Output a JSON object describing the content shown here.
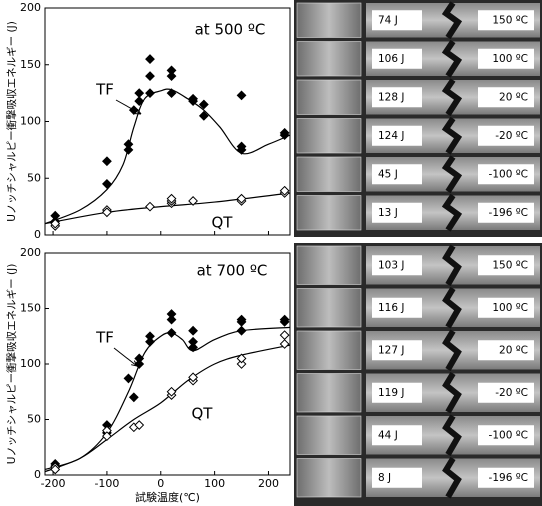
{
  "chart_data": [
    {
      "type": "scatter",
      "annotation": "at 500 ºC",
      "ylabel": "Uノッチシャルピー衝撃吸収エネルギー (J)",
      "xlim": [
        -215,
        240
      ],
      "ylim": [
        0,
        200
      ],
      "xticks": [
        -200,
        -100,
        0,
        100,
        200
      ],
      "yticks": [
        0,
        50,
        100,
        150,
        200
      ],
      "series": [
        {
          "name": "TF",
          "marker": "filled",
          "color": "#000000",
          "x": [
            -196,
            -196,
            -100,
            -100,
            -60,
            -60,
            -50,
            -40,
            -40,
            -20,
            -20,
            -20,
            20,
            20,
            20,
            60,
            60,
            80,
            80,
            150,
            150,
            150,
            230,
            230
          ],
          "values": [
            17,
            12,
            45,
            65,
            75,
            80,
            110,
            118,
            125,
            125,
            140,
            155,
            125,
            140,
            145,
            118,
            120,
            105,
            115,
            75,
            78,
            123,
            88,
            90
          ]
        },
        {
          "name": "QT",
          "marker": "open",
          "color": "#000000",
          "x": [
            -196,
            -196,
            -100,
            -100,
            -20,
            20,
            20,
            20,
            60,
            150,
            150,
            230,
            230
          ],
          "values": [
            8,
            10,
            22,
            20,
            25,
            28,
            30,
            32,
            30,
            30,
            32,
            37,
            39
          ]
        }
      ],
      "fits": [
        {
          "x": [
            -215,
            -150,
            -100,
            -70,
            -50,
            -30,
            0,
            20,
            50,
            80,
            110,
            150,
            200,
            240
          ],
          "values": [
            10,
            22,
            40,
            62,
            95,
            120,
            127,
            128,
            120,
            110,
            95,
            72,
            80,
            88
          ]
        },
        {
          "x": [
            -215,
            -100,
            0,
            100,
            240
          ],
          "values": [
            10,
            20,
            25,
            29,
            37
          ]
        }
      ]
    },
    {
      "type": "scatter",
      "annotation": "at 700 ºC",
      "ylabel": "Uノッチシャルピー衝撃吸収エネルギー (J)",
      "xlabel": "試験温度(℃)",
      "xlim": [
        -215,
        240
      ],
      "ylim": [
        0,
        200
      ],
      "xticks": [
        -200,
        -100,
        0,
        100,
        200
      ],
      "yticks": [
        0,
        50,
        100,
        150,
        200
      ],
      "series": [
        {
          "name": "TF",
          "marker": "filled",
          "color": "#000000",
          "x": [
            -196,
            -196,
            -100,
            -100,
            -50,
            -60,
            -40,
            -40,
            -20,
            -20,
            20,
            20,
            20,
            60,
            60,
            60,
            150,
            150,
            150,
            230,
            230
          ],
          "values": [
            8,
            10,
            45,
            38,
            70,
            87,
            100,
            105,
            120,
            125,
            140,
            145,
            128,
            115,
            120,
            130,
            138,
            140,
            130,
            138,
            140
          ]
        },
        {
          "name": "QT",
          "marker": "open",
          "color": "#000000",
          "x": [
            -196,
            -196,
            -100,
            -100,
            -50,
            -40,
            20,
            20,
            60,
            60,
            150,
            150,
            230,
            230
          ],
          "values": [
            7,
            5,
            40,
            35,
            43,
            45,
            72,
            75,
            85,
            88,
            100,
            105,
            118,
            126
          ]
        }
      ],
      "fits": [
        {
          "x": [
            -215,
            -150,
            -100,
            -60,
            -30,
            0,
            20,
            40,
            60,
            100,
            150,
            240
          ],
          "values": [
            5,
            15,
            38,
            75,
            110,
            125,
            128,
            122,
            112,
            122,
            130,
            133
          ]
        },
        {
          "x": [
            -215,
            -150,
            -100,
            -50,
            0,
            50,
            100,
            150,
            240
          ],
          "values": [
            3,
            15,
            32,
            50,
            65,
            85,
            100,
            108,
            117
          ]
        }
      ]
    }
  ],
  "photos": [
    {
      "rows": [
        {
          "energy": "74 J",
          "temp": "150 ºC"
        },
        {
          "energy": "106 J",
          "temp": "100 ºC"
        },
        {
          "energy": "128 J",
          "temp": "20 ºC"
        },
        {
          "energy": "124 J",
          "temp": "-20 ºC"
        },
        {
          "energy": "45 J",
          "temp": "-100 ºC"
        },
        {
          "energy": "13 J",
          "temp": "-196 ºC"
        }
      ]
    },
    {
      "rows": [
        {
          "energy": "103 J",
          "temp": "150 ºC"
        },
        {
          "energy": "116 J",
          "temp": "100 ºC"
        },
        {
          "energy": "127 J",
          "temp": "20 ºC"
        },
        {
          "energy": "119 J",
          "temp": "-20 ºC"
        },
        {
          "energy": "44 J",
          "temp": "-100 ºC"
        },
        {
          "energy": "8 J",
          "temp": "-196 ºC"
        }
      ]
    }
  ]
}
